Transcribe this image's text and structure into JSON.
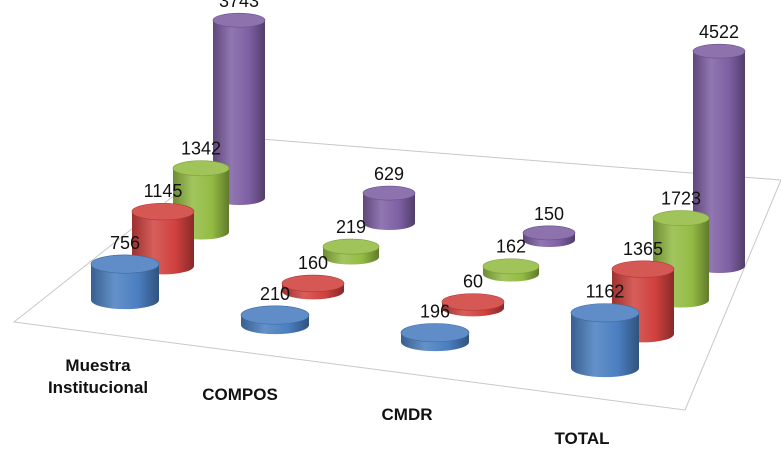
{
  "chart_data": {
    "type": "bar",
    "style": "3d-cylinder",
    "categories": [
      "Muestra Institucional",
      "COMPOS",
      "CMDR",
      "TOTAL"
    ],
    "category_lines": [
      [
        "Muestra",
        "Institucional"
      ],
      [
        "COMPOS"
      ],
      [
        "CMDR"
      ],
      [
        "TOTAL"
      ]
    ],
    "series": [
      {
        "color": "#4a7ec0",
        "values": [
          756,
          210,
          196,
          1162
        ]
      },
      {
        "color": "#d0413e",
        "values": [
          1145,
          160,
          60,
          1365
        ]
      },
      {
        "color": "#93bb43",
        "values": [
          1342,
          219,
          162,
          1723
        ]
      },
      {
        "color": "#7d5fa3",
        "values": [
          3743,
          629,
          150,
          4522
        ]
      }
    ],
    "title": "",
    "xlabel": "",
    "ylabel": "",
    "ylim": [
      0,
      4600
    ],
    "legend": "none",
    "grid": false
  }
}
